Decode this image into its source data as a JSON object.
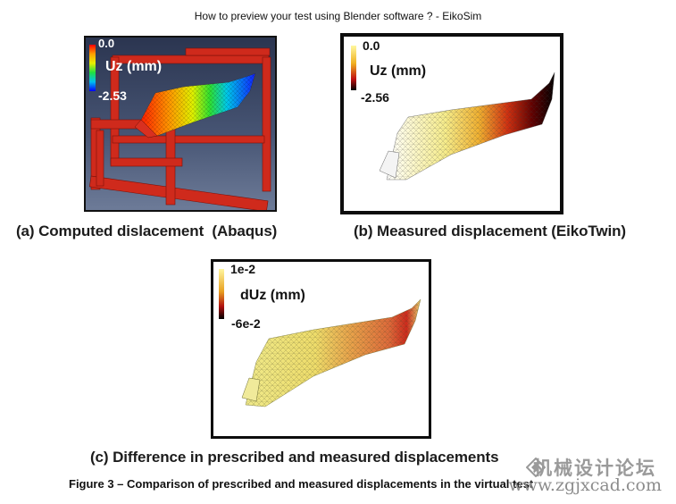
{
  "page": {
    "title": "How to preview your test using Blender software ? - EikoSim"
  },
  "figure": {
    "panel_a": {
      "legend_max": "0.0",
      "legend_label": "Uz (mm)",
      "legend_min": "-2.53",
      "caption": "(a) Computed dislacement  (Abaqus)"
    },
    "panel_b": {
      "legend_max": "0.0",
      "legend_label": "Uz (mm)",
      "legend_min": "-2.56",
      "caption": "(b) Measured displacement (EikoTwin)"
    },
    "panel_c": {
      "legend_max": "1e-2",
      "legend_label": "dUz (mm)",
      "legend_min": "-6e-2",
      "caption": "(c) Difference in prescribed and measured displacements"
    },
    "caption": "Figure 3 – Comparison of prescribed and measured displacements in the virtual test"
  },
  "watermark": {
    "site_name": "机械设计论坛",
    "url": "www.zgjxcad.com"
  },
  "colors": {
    "frame_red": "#d42a1c",
    "abaqus_bg": "#3a4663",
    "heat_dark": "#000000",
    "heat_red": "#c0121a",
    "heat_yellow": "#f2e64a",
    "diff_yellow": "#e8e07a"
  }
}
